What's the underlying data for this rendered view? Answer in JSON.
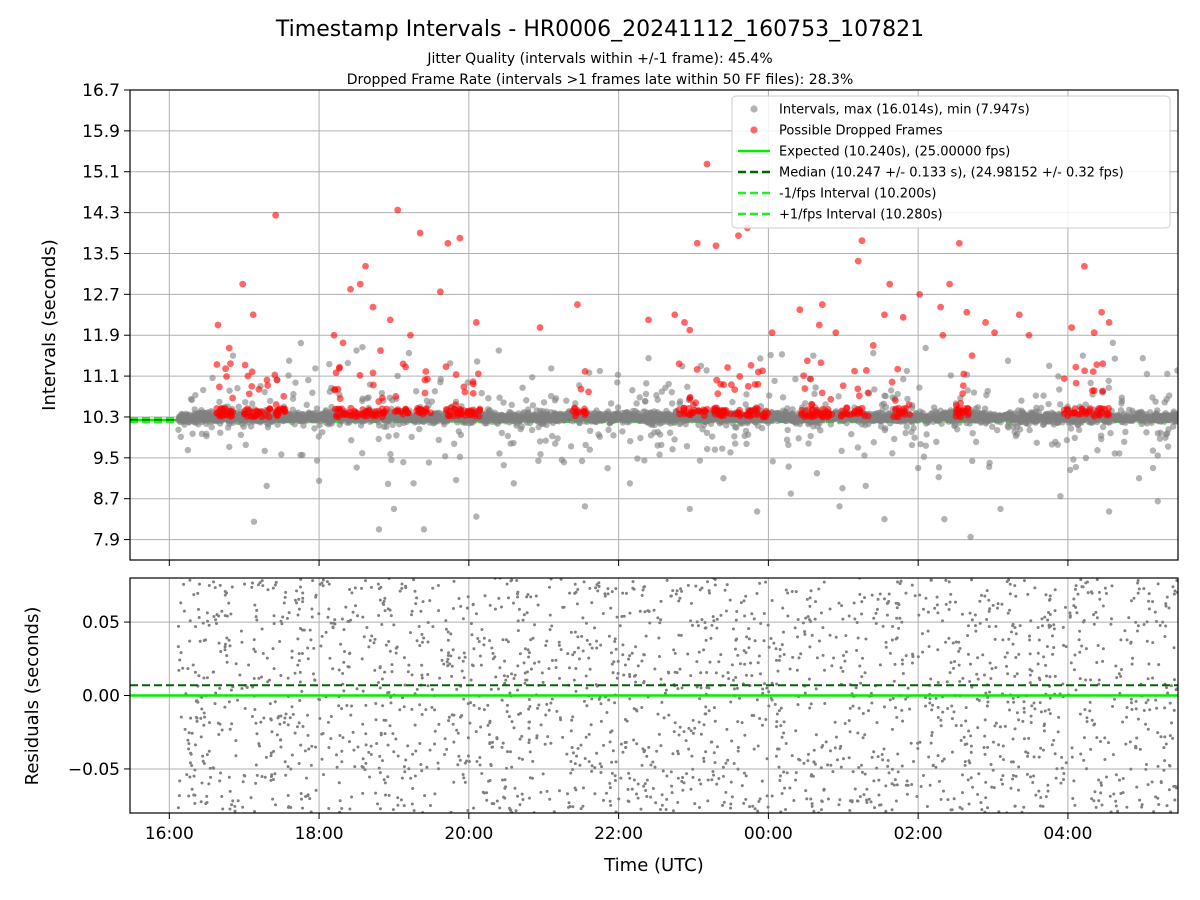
{
  "chart_data": {
    "title": "Timestamp Intervals - HR0006_20241112_160753_107821",
    "subtitle_lines": [
      "Jitter Quality (intervals within +/-1 frame): 45.4%",
      "Dropped Frame Rate (intervals >1 frames late within 50 FF files): 28.3%"
    ],
    "colors": {
      "intervals": "#808080",
      "dropped": "#ff0000",
      "expected": "#00ee00",
      "median": "#006400",
      "fps_bounds": "#22ee22",
      "grid": "#b0b0b0"
    },
    "x_axis": {
      "label": "Time (UTC)",
      "ticks": [
        "16:00",
        "18:00",
        "20:00",
        "22:00",
        "00:00",
        "02:00",
        "04:00"
      ],
      "tick_hours": [
        16,
        18,
        20,
        22,
        24,
        26,
        28
      ],
      "range_hours": [
        15.475,
        29.47
      ]
    },
    "panels": [
      {
        "type": "scatter",
        "ylabel": "Intervals (seconds)",
        "ylim": [
          7.5,
          16.7
        ],
        "yticks": [
          "16.7",
          "15.9",
          "15.1",
          "14.3",
          "13.5",
          "12.7",
          "11.9",
          "11.1",
          "10.3",
          "9.5",
          "8.7",
          "7.9"
        ],
        "ytick_values": [
          16.7,
          15.9,
          15.1,
          14.3,
          13.5,
          12.7,
          11.9,
          11.1,
          10.3,
          9.5,
          8.7,
          7.9
        ],
        "legend_position": "top-right",
        "legend": [
          {
            "label": "Intervals, max (16.014s), min (7.947s)",
            "kind": "marker",
            "color": "intervals"
          },
          {
            "label": "Possible Dropped Frames",
            "kind": "marker",
            "color": "dropped"
          },
          {
            "label": "Expected (10.240s), (25.00000 fps)",
            "kind": "solid",
            "color": "expected"
          },
          {
            "label": "Median (10.247 +/- 0.133 s), (24.98152 +/- 0.32 fps)",
            "kind": "dashed",
            "color": "median"
          },
          {
            "label": "-1/fps Interval (10.200s)",
            "kind": "dashed",
            "color": "fps_bounds"
          },
          {
            "label": "+1/fps Interval (10.280s)",
            "kind": "dashed",
            "color": "fps_bounds"
          }
        ],
        "hlines": [
          {
            "y": 10.24,
            "style": "solid",
            "color": "expected"
          },
          {
            "y": 10.247,
            "style": "dashed",
            "color": "median"
          },
          {
            "y": 10.2,
            "style": "dashed",
            "color": "fps_bounds"
          },
          {
            "y": 10.28,
            "style": "dashed",
            "color": "fps_bounds"
          }
        ],
        "data_start_hour": 16.12,
        "series": {
          "intervals_outliers": [
            [
              17.13,
              8.25
            ],
            [
              18.8,
              8.1
            ],
            [
              19.4,
              8.1
            ],
            [
              20.1,
              8.35
            ],
            [
              21.55,
              8.55
            ],
            [
              22.95,
              8.5
            ],
            [
              23.85,
              8.45
            ],
            [
              24.3,
              8.8
            ],
            [
              24.95,
              8.55
            ],
            [
              25.55,
              8.3
            ],
            [
              26.35,
              8.3
            ],
            [
              26.7,
              7.95
            ],
            [
              27.1,
              8.5
            ],
            [
              28.55,
              8.45
            ],
            [
              29.2,
              8.65
            ],
            [
              17.3,
              8.95
            ],
            [
              18.0,
              9.05
            ],
            [
              19.0,
              8.5
            ],
            [
              20.6,
              9.0
            ],
            [
              22.15,
              9.0
            ],
            [
              23.4,
              9.1
            ],
            [
              25.3,
              8.95
            ],
            [
              26.0,
              9.3
            ],
            [
              27.9,
              8.75
            ],
            [
              28.95,
              9.1
            ],
            [
              16.85,
              11.5
            ],
            [
              17.6,
              11.4
            ],
            [
              18.5,
              11.6
            ],
            [
              19.2,
              11.55
            ],
            [
              20.4,
              11.6
            ],
            [
              21.1,
              11.25
            ],
            [
              22.4,
              11.45
            ],
            [
              23.1,
              11.3
            ],
            [
              24.6,
              11.5
            ],
            [
              25.4,
              11.55
            ],
            [
              26.1,
              11.65
            ],
            [
              27.2,
              11.4
            ],
            [
              27.75,
              11.3
            ],
            [
              28.2,
              11.5
            ],
            [
              29.0,
              11.45
            ],
            [
              17.95,
              11.25
            ],
            [
              19.75,
              11.35
            ],
            [
              21.75,
              11.2
            ],
            [
              25.85,
              11.2
            ],
            [
              28.6,
              11.75
            ]
          ],
          "dropped_clusters": [
            {
              "x": [
                16.63,
                16.85
              ],
              "n": 22
            },
            {
              "x": [
                17.0,
                17.35
              ],
              "n": 28
            },
            {
              "x": [
                17.38,
                17.55
              ],
              "n": 14
            },
            {
              "x": [
                18.2,
                18.9
              ],
              "n": 48
            },
            {
              "x": [
                19.0,
                19.2
              ],
              "n": 12
            },
            {
              "x": [
                19.3,
                19.55
              ],
              "n": 16
            },
            {
              "x": [
                19.68,
                19.95
              ],
              "n": 20
            },
            {
              "x": [
                19.98,
                20.15
              ],
              "n": 14
            },
            {
              "x": [
                21.35,
                21.6
              ],
              "n": 12
            },
            {
              "x": [
                22.8,
                23.2
              ],
              "n": 22
            },
            {
              "x": [
                23.25,
                23.65
              ],
              "n": 30
            },
            {
              "x": [
                23.7,
                24.0
              ],
              "n": 24
            },
            {
              "x": [
                24.4,
                24.85
              ],
              "n": 30
            },
            {
              "x": [
                24.95,
                25.35
              ],
              "n": 22
            },
            {
              "x": [
                25.65,
                25.9
              ],
              "n": 14
            },
            {
              "x": [
                26.5,
                26.7
              ],
              "n": 18
            },
            {
              "x": [
                27.95,
                28.35
              ],
              "n": 22
            },
            {
              "x": [
                28.35,
                28.55
              ],
              "n": 14
            }
          ],
          "dropped_outliers": [
            [
              16.65,
              12.1
            ],
            [
              16.8,
              11.65
            ],
            [
              16.98,
              12.9
            ],
            [
              17.05,
              11.1
            ],
            [
              17.12,
              12.3
            ],
            [
              17.42,
              14.25
            ],
            [
              18.2,
              11.9
            ],
            [
              18.32,
              11.75
            ],
            [
              18.42,
              12.8
            ],
            [
              18.55,
              12.9
            ],
            [
              18.62,
              13.25
            ],
            [
              18.72,
              12.45
            ],
            [
              18.82,
              11.6
            ],
            [
              18.95,
              12.2
            ],
            [
              19.05,
              14.35
            ],
            [
              19.22,
              11.9
            ],
            [
              19.35,
              13.9
            ],
            [
              19.62,
              12.75
            ],
            [
              19.72,
              13.7
            ],
            [
              19.88,
              13.8
            ],
            [
              20.1,
              12.15
            ],
            [
              20.95,
              12.05
            ],
            [
              21.45,
              12.5
            ],
            [
              22.4,
              12.2
            ],
            [
              22.75,
              12.3
            ],
            [
              22.88,
              12.15
            ],
            [
              22.95,
              12.0
            ],
            [
              23.05,
              13.7
            ],
            [
              23.18,
              15.25
            ],
            [
              23.3,
              13.65
            ],
            [
              23.6,
              13.85
            ],
            [
              23.72,
              14.0
            ],
            [
              24.05,
              11.95
            ],
            [
              24.42,
              12.4
            ],
            [
              24.52,
              11.4
            ],
            [
              24.68,
              12.1
            ],
            [
              24.72,
              12.5
            ],
            [
              24.9,
              11.95
            ],
            [
              25.2,
              13.35
            ],
            [
              25.25,
              13.75
            ],
            [
              25.4,
              11.7
            ],
            [
              25.55,
              12.3
            ],
            [
              25.62,
              12.9
            ],
            [
              25.8,
              12.25
            ],
            [
              26.02,
              12.7
            ],
            [
              26.3,
              12.45
            ],
            [
              26.33,
              11.9
            ],
            [
              26.42,
              12.9
            ],
            [
              26.55,
              13.7
            ],
            [
              26.65,
              12.35
            ],
            [
              26.72,
              11.5
            ],
            [
              26.9,
              12.15
            ],
            [
              27.02,
              11.95
            ],
            [
              27.35,
              12.3
            ],
            [
              27.48,
              11.9
            ],
            [
              28.05,
              12.05
            ],
            [
              28.22,
              13.25
            ],
            [
              28.35,
              11.95
            ],
            [
              28.45,
              12.35
            ],
            [
              28.55,
              12.15
            ]
          ]
        }
      },
      {
        "type": "scatter",
        "ylabel": "Residuals (seconds)",
        "ylim": [
          -0.08,
          0.08
        ],
        "yticks": [
          "0.05",
          "0.00",
          "−0.05"
        ],
        "ytick_values": [
          0.05,
          0.0,
          -0.05
        ],
        "hlines": [
          {
            "y": 0.0,
            "style": "solid",
            "color": "expected"
          },
          {
            "y": 0.007,
            "style": "dashed",
            "color": "median"
          }
        ],
        "points": {
          "distribution": "uniform",
          "range": [
            -0.08,
            0.08
          ],
          "count": 2200,
          "color": "intervals"
        }
      }
    ]
  }
}
